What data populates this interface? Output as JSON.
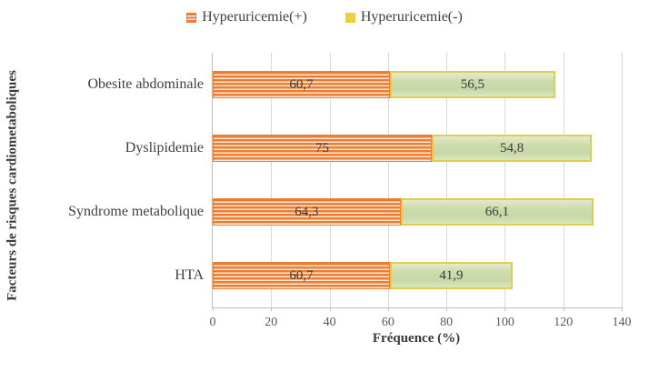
{
  "chart_data": {
    "type": "bar",
    "orientation": "horizontal",
    "stacked": true,
    "categories": [
      "Obesite abdominale",
      "Dyslipidemie",
      "Syndrome metabolique",
      "HTA"
    ],
    "series": [
      {
        "name": "Hyperuricemie(+)",
        "values": [
          60.7,
          75,
          64.3,
          60.7
        ],
        "value_labels": [
          "60,7",
          "75",
          "64,3",
          "60,7"
        ],
        "color": "#ED7D31",
        "pattern": "horizontal-stripes"
      },
      {
        "name": "Hyperuricemie(-)",
        "values": [
          56.5,
          54.8,
          66.1,
          41.9
        ],
        "value_labels": [
          "56,5",
          "54,8",
          "66,1",
          "41,9"
        ],
        "color": "#E8CF45",
        "fill": "#CBDBAA"
      }
    ],
    "xlabel": "Fréquence (%)",
    "ylabel": "Facteurs de risques cardiometaboliques",
    "xlim": [
      0,
      140
    ],
    "xticks": [
      0,
      20,
      40,
      60,
      80,
      100,
      120,
      140
    ],
    "xtick_labels": [
      "0",
      "20",
      "40",
      "60",
      "80",
      "100",
      "120",
      "140"
    ],
    "grid": true,
    "legend_position": "top"
  }
}
